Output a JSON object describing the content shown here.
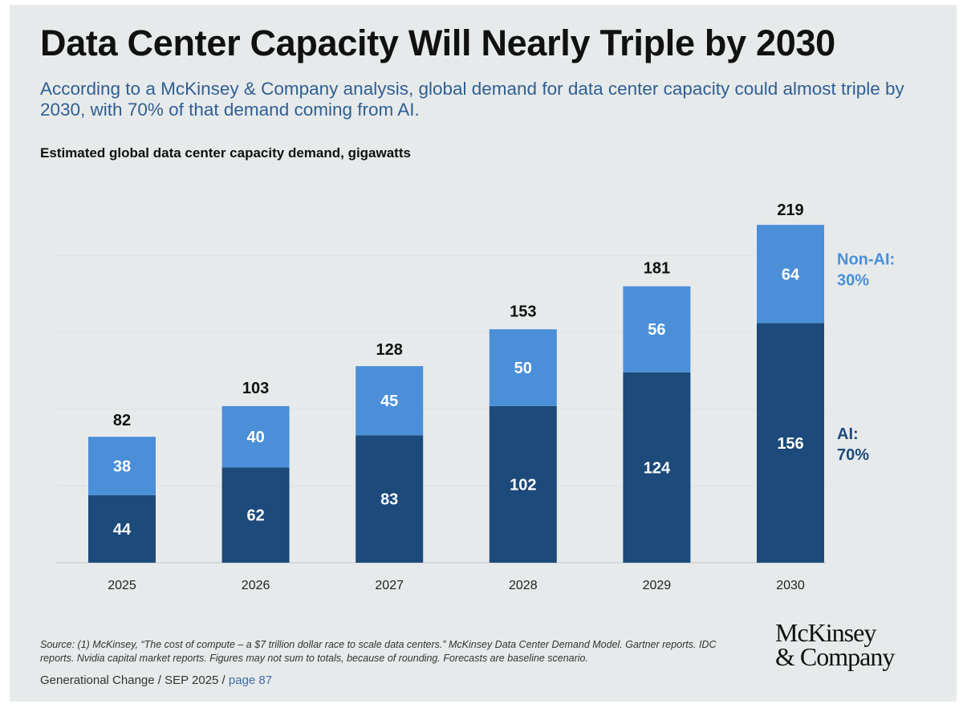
{
  "title": "Data Center Capacity Will Nearly Triple by 2030",
  "subtitle": "According to a McKinsey & Company analysis, global demand for data center capacity could almost triple by 2030, with 70% of that demand coming from AI.",
  "chart_data": {
    "type": "bar",
    "stacked": true,
    "title": "Estimated global data center capacity demand, gigawatts",
    "categories": [
      "2025",
      "2026",
      "2027",
      "2028",
      "2029",
      "2030"
    ],
    "series": [
      {
        "name": "AI: 70%",
        "label_line1": "AI:",
        "label_line2": "70%",
        "values": [
          44,
          62,
          83,
          102,
          124,
          156
        ],
        "color": "#1c4a7b"
      },
      {
        "name": "Non-AI: 30%",
        "label_line1": "Non-AI:",
        "label_line2": "30%",
        "values": [
          38,
          40,
          45,
          50,
          56,
          64
        ],
        "color": "#4a8fd8"
      }
    ],
    "totals": [
      82,
      103,
      128,
      153,
      181,
      219
    ],
    "ylim": [
      0,
      230
    ],
    "grid": true,
    "y_axis_visible": false
  },
  "source": "Source: (1) McKinsey, “The cost of compute – a $7 trillion dollar race to scale data centers.” McKinsey Data Center Demand Model. Gartner reports. IDC reports. Nvidia capital market reports. Figures may not sum to totals, because of rounding. Forecasts are baseline scenario.",
  "footer": {
    "left": "Generational Change / SEP 2025 / ",
    "page": "page 87"
  },
  "logo": {
    "line1": "McKinsey",
    "line2": "& Company"
  }
}
